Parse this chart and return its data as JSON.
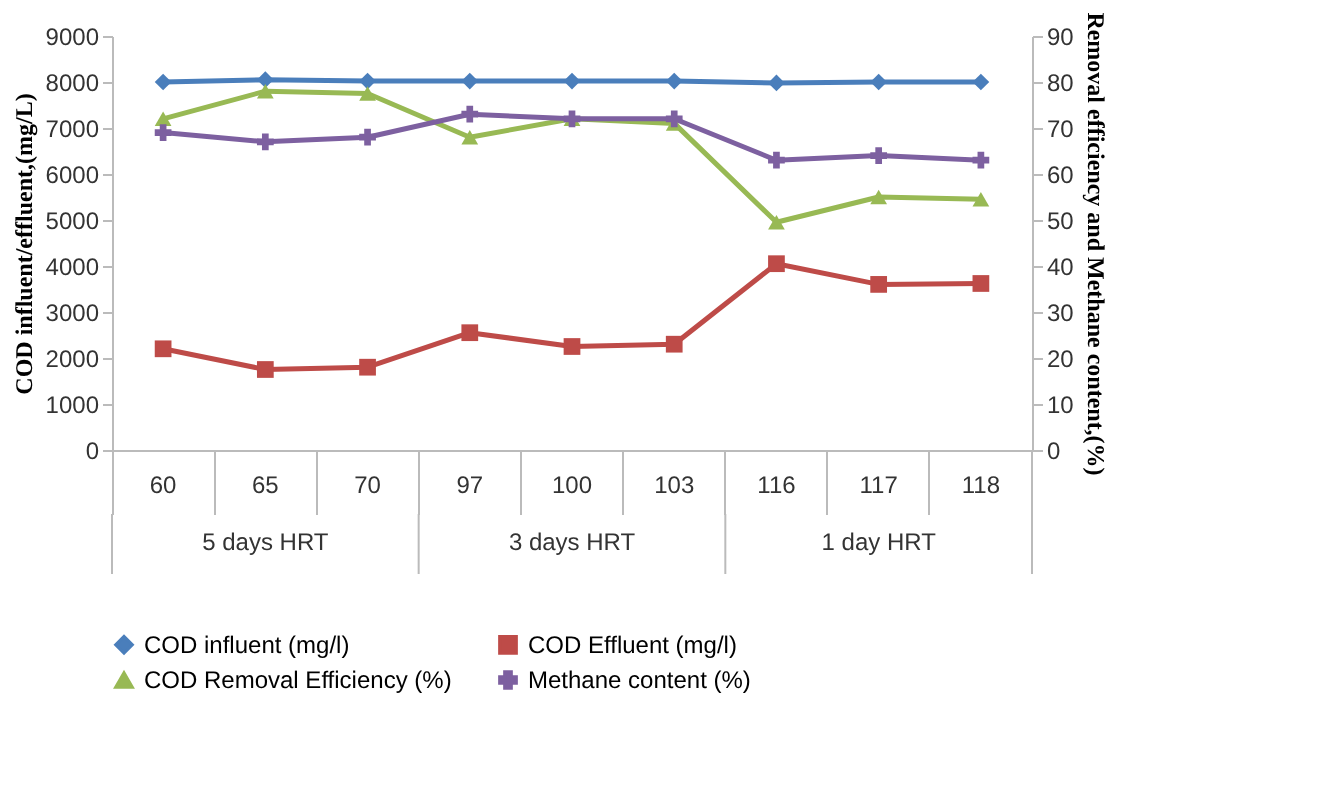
{
  "chart_data": {
    "type": "line",
    "categories": [
      "60",
      "65",
      "70",
      "97",
      "100",
      "103",
      "116",
      "117",
      "118"
    ],
    "ylabel": "COD influent/effluent,(mg/L)",
    "y2label": "Removal efficiency and Methane content,(%)",
    "ylim": [
      0,
      9000
    ],
    "yticks": [
      0,
      1000,
      2000,
      3000,
      4000,
      5000,
      6000,
      7000,
      8000,
      9000
    ],
    "y2lim": [
      0,
      90
    ],
    "y2ticks": [
      0,
      10,
      20,
      30,
      40,
      50,
      60,
      70,
      80,
      90
    ],
    "annotations": [
      "5 days HRT",
      "3 days HRT",
      "1 day HRT"
    ],
    "legend": "bottom",
    "grid": false,
    "series": [
      {
        "name": "COD influent (mg/l)",
        "color": "#4a7ebb",
        "marker": "diamond",
        "values": [
          8000,
          8050,
          8020,
          8020,
          8020,
          8020,
          7980,
          8000,
          8000
        ]
      },
      {
        "name": "COD Effluent (mg/l)",
        "color": "#be4b48",
        "marker": "square",
        "values": [
          2200,
          1750,
          1800,
          2550,
          2250,
          2300,
          4050,
          3600,
          3620
        ]
      },
      {
        "name": "COD Removal Efficiency (%)",
        "color": "#98b954",
        "marker": "triangle",
        "axis": "y2",
        "values": [
          72,
          78,
          77.5,
          68,
          72,
          71,
          49.5,
          55,
          54.5
        ]
      },
      {
        "name": "Methane content (%)",
        "color": "#7d60a0",
        "marker": "cross",
        "axis": "y2",
        "values": [
          69,
          67,
          68,
          73,
          72,
          72,
          63,
          64,
          63
        ]
      }
    ]
  }
}
